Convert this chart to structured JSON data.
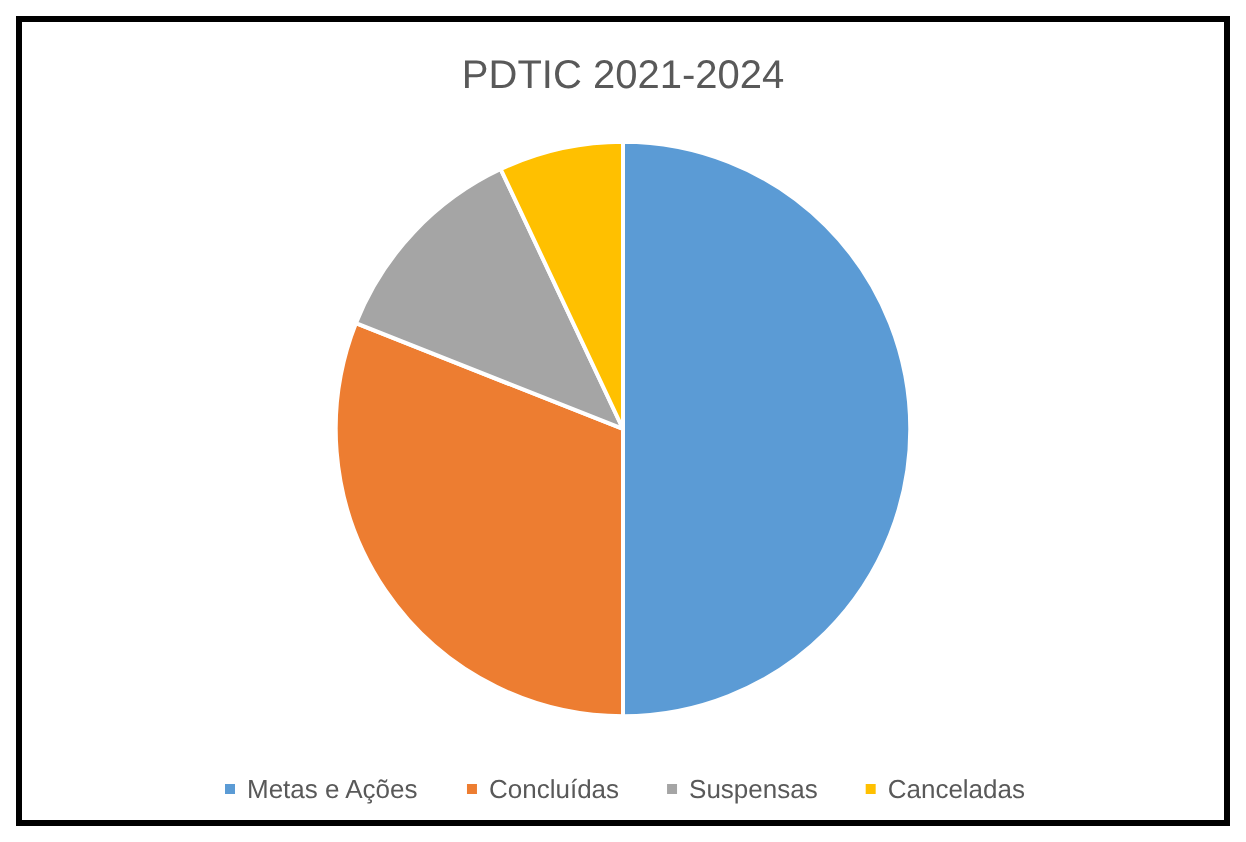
{
  "chart_data": {
    "type": "pie",
    "title": "PDTIC 2021-2024",
    "categories": [
      "Metas e Ações",
      "Concluídas",
      "Suspensas",
      "Canceladas"
    ],
    "values": [
      50,
      31,
      12,
      7
    ],
    "colors": [
      "#5b9bd5",
      "#ed7d31",
      "#a5a5a5",
      "#ffc000"
    ],
    "legend": "bottom"
  }
}
